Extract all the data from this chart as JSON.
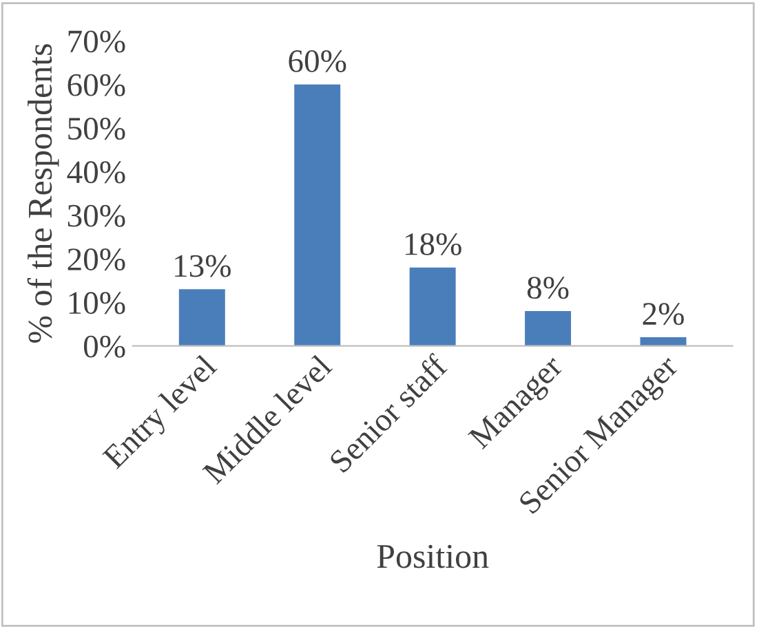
{
  "chart_data": {
    "type": "bar",
    "xlabel": "Position",
    "ylabel": "% of the Respondents",
    "categories": [
      "Entry level",
      "Middle level",
      "Senior staff",
      "Manager",
      "Senior Manager"
    ],
    "values": [
      13,
      60,
      18,
      8,
      2
    ],
    "color": "#4a7ebb",
    "data_labels": true,
    "value_labels": [
      "13%",
      "60%",
      "18%",
      "8%",
      "2%"
    ],
    "ylim": [
      0,
      70
    ],
    "yticks": [
      {
        "value": 0,
        "label": "0%"
      },
      {
        "value": 10,
        "label": "10%"
      },
      {
        "value": 20,
        "label": "20%"
      },
      {
        "value": 30,
        "label": "30%"
      },
      {
        "value": 40,
        "label": "40%"
      },
      {
        "value": 50,
        "label": "50%"
      },
      {
        "value": 60,
        "label": "60%"
      },
      {
        "value": 70,
        "label": "70%"
      }
    ],
    "grid": false,
    "legend": false
  }
}
